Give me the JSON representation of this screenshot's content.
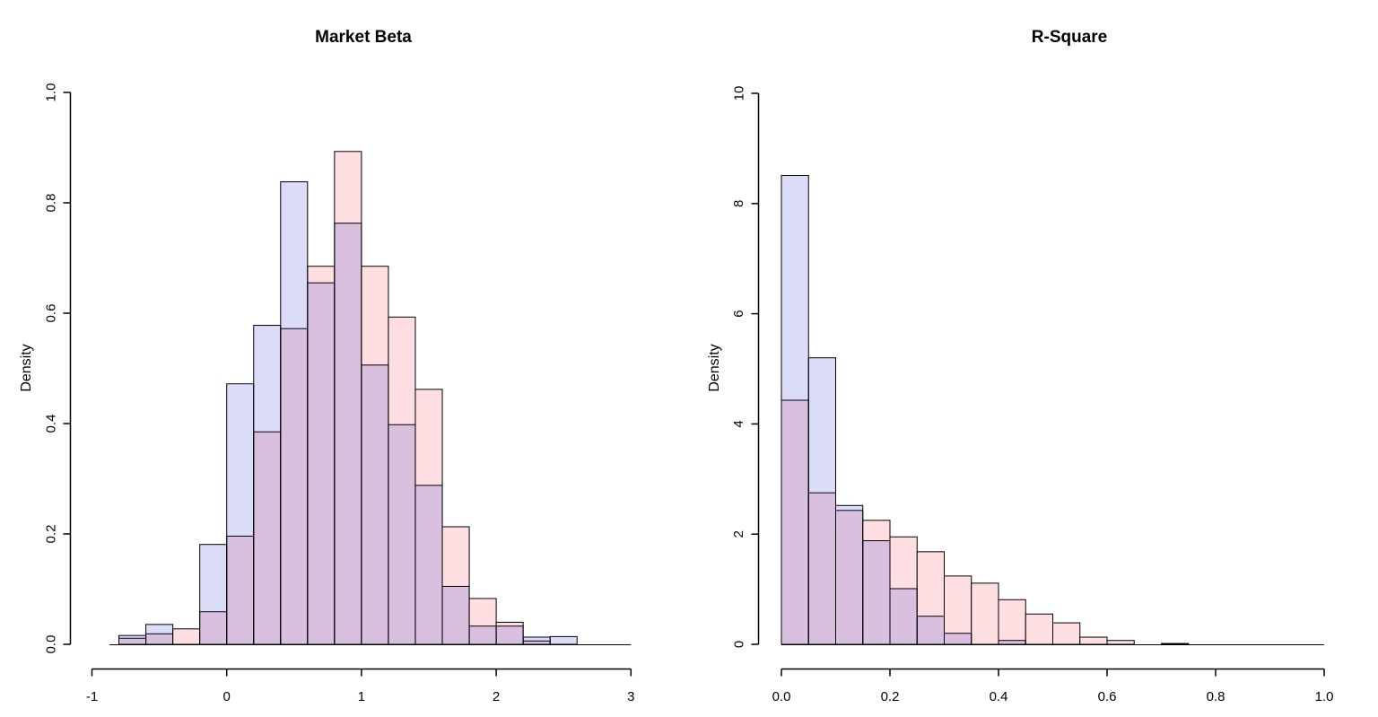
{
  "figure": {
    "background": "#ffffff"
  },
  "colors": {
    "bar_border": "#000000",
    "axis": "#000000",
    "text": "#000000",
    "pink_fill": "#ffdee2",
    "blue_fill": "rgba(8,22,208,0.15)",
    "blue_on_white": "#dadcf8",
    "overlap": "#dac1df"
  },
  "chart_data": [
    {
      "type": "bar",
      "subtype": "overlaid-histograms",
      "title": "Market Beta",
      "xlabel": "",
      "ylabel": "Density",
      "xlim": [
        -1,
        3
      ],
      "ylim": [
        0,
        1.0
      ],
      "x_tick_values": [
        -1,
        0,
        1,
        2,
        3
      ],
      "x_tick_labels": [
        "-1",
        "0",
        "1",
        "2",
        "3"
      ],
      "y_tick_values": [
        0,
        0.2,
        0.4,
        0.6,
        0.8,
        1.0
      ],
      "y_tick_labels": [
        "0.0",
        "0.2",
        "0.4",
        "0.6",
        "0.8",
        "1.0"
      ],
      "bin_start": -0.8,
      "bin_width": 0.2,
      "baseline_extent": [
        -0.87,
        3.0
      ],
      "grid": false,
      "legend": null,
      "series": [
        {
          "name": "pink-histogram",
          "color_key": "pink_fill",
          "values": [
            0.011,
            0.019,
            0.028,
            0.059,
            0.196,
            0.385,
            0.572,
            0.685,
            0.893,
            0.685,
            0.593,
            0.462,
            0.213,
            0.083,
            0.04,
            0.006,
            0
          ]
        },
        {
          "name": "blue-histogram",
          "color_key": "blue_fill",
          "values": [
            0.016,
            0.036,
            0,
            0.181,
            0.472,
            0.578,
            0.838,
            0.655,
            0.763,
            0.506,
            0.398,
            0.288,
            0.105,
            0.033,
            0.033,
            0.013,
            0.014
          ]
        }
      ]
    },
    {
      "type": "bar",
      "subtype": "overlaid-histograms",
      "title": "R-Square",
      "xlabel": "",
      "ylabel": "Density",
      "xlim": [
        0,
        1.0
      ],
      "ylim": [
        0,
        10
      ],
      "x_tick_values": [
        0,
        0.2,
        0.4,
        0.6,
        0.8,
        1.0
      ],
      "x_tick_labels": [
        "0.0",
        "0.2",
        "0.4",
        "0.6",
        "0.8",
        "1.0"
      ],
      "y_tick_values": [
        0,
        2,
        4,
        6,
        8,
        10
      ],
      "y_tick_labels": [
        "0",
        "2",
        "4",
        "6",
        "8",
        "10"
      ],
      "bin_start": 0,
      "bin_width": 0.05,
      "baseline_extent": [
        0,
        1.0
      ],
      "grid": false,
      "legend": null,
      "series": [
        {
          "name": "pink-histogram",
          "color_key": "pink_fill",
          "values": [
            4.43,
            2.75,
            2.43,
            2.25,
            1.95,
            1.68,
            1.24,
            1.11,
            0.81,
            0.55,
            0.39,
            0.13,
            0.07,
            0,
            0.015
          ]
        },
        {
          "name": "blue-histogram",
          "color_key": "blue_fill",
          "values": [
            8.51,
            5.2,
            2.52,
            1.88,
            1.01,
            0.51,
            0.2,
            0,
            0.07,
            0,
            0,
            0,
            0,
            0,
            0
          ]
        }
      ]
    }
  ]
}
